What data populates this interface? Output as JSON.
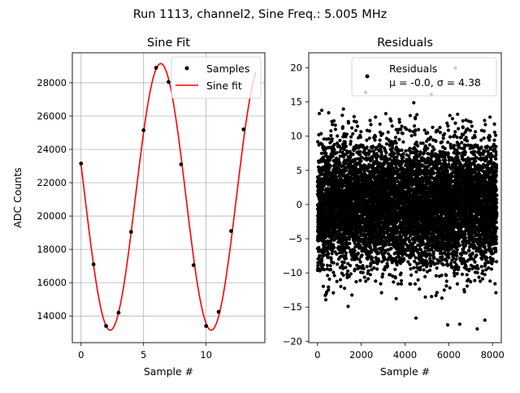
{
  "suptitle": "Run 1113, channel2, Sine Freq.: 5.005 MHz",
  "chart_data": [
    {
      "type": "line",
      "title": "Sine Fit",
      "xlabel": "Sample #",
      "ylabel": "ADC Counts",
      "xlim": [
        -0.7,
        14.7
      ],
      "ylim": [
        12400,
        29800
      ],
      "xticks": [
        0,
        5,
        10
      ],
      "yticks": [
        14000,
        16000,
        18000,
        20000,
        22000,
        24000,
        26000,
        28000
      ],
      "xtick_labels": [
        "0",
        "5",
        "10"
      ],
      "ytick_labels": [
        "14000",
        "16000",
        "18000",
        "20000",
        "22000",
        "24000",
        "26000",
        "28000"
      ],
      "grid": true,
      "legend": "upper right",
      "samples": {
        "name": "Samples",
        "color": "#000000",
        "x": [
          0,
          1,
          2,
          3,
          4,
          5,
          6,
          7,
          8,
          9,
          10,
          11,
          12,
          13
        ],
        "y": [
          23150,
          17100,
          13400,
          14200,
          19050,
          25150,
          28900,
          28050,
          23100,
          17050,
          13400,
          14250,
          19100,
          25200
        ]
      },
      "fit": {
        "name": "Sine fit",
        "color": "#ff0000",
        "amplitude": 8000,
        "offset": 21150,
        "period": 8.08,
        "peak_x": 6.37,
        "x_range": [
          0,
          14
        ]
      }
    },
    {
      "type": "scatter",
      "title": "Residuals",
      "xlabel": "Sample #",
      "ylabel": "",
      "xlim": [
        -400,
        8400
      ],
      "ylim": [
        -20.2,
        22.2
      ],
      "xticks": [
        0,
        2000,
        4000,
        6000,
        8000
      ],
      "yticks": [
        -20,
        -15,
        -10,
        -5,
        0,
        5,
        10,
        15,
        20
      ],
      "xtick_labels": [
        "0",
        "2000",
        "4000",
        "6000",
        "8000"
      ],
      "ytick_labels": [
        "−20",
        "−15",
        "−10",
        "−5",
        "0",
        "5",
        "10",
        "15",
        "20"
      ],
      "grid": false,
      "legend": "upper right",
      "series_name": "Residuals",
      "stats_label": "μ = -0.0, σ = 4.38",
      "color": "#000000",
      "n_points": 8192,
      "mean": 0.0,
      "std": 4.38,
      "outliers": [
        {
          "x": 6300,
          "y": 20.0
        },
        {
          "x": 2200,
          "y": 16.4
        },
        {
          "x": 5200,
          "y": 16.1
        },
        {
          "x": 4400,
          "y": 14.9
        },
        {
          "x": 7300,
          "y": -18.2
        },
        {
          "x": 5950,
          "y": -17.6
        },
        {
          "x": 6500,
          "y": -17.5
        },
        {
          "x": 4500,
          "y": -16.6
        },
        {
          "x": 1400,
          "y": -14.9
        },
        {
          "x": 7650,
          "y": -16.9
        }
      ]
    }
  ]
}
